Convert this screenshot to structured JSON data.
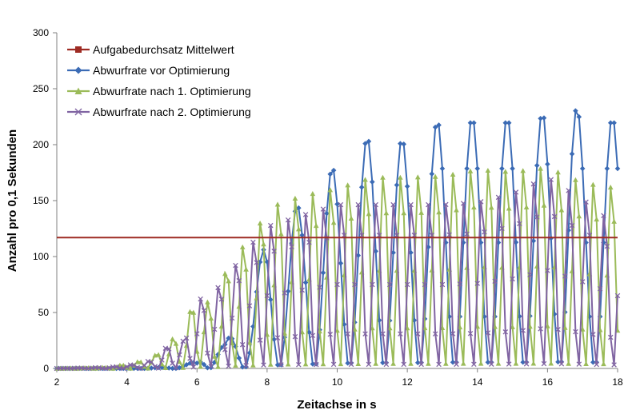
{
  "chart_data": {
    "type": "line",
    "xlabel": "Zeitachse in s",
    "ylabel": "Anzahl pro 0,1 Sekunden",
    "xlim": [
      2,
      18
    ],
    "ylim": [
      0,
      300
    ],
    "xticks": [
      2,
      4,
      6,
      8,
      10,
      12,
      14,
      16,
      18
    ],
    "yticks": [
      0,
      50,
      100,
      150,
      200,
      250,
      300
    ],
    "grid": false,
    "legend_position": "top-left",
    "series": [
      {
        "name": "Aufgabedurchsatz Mittelwert",
        "color": "#9e2b23",
        "marker": "square",
        "kind": "constant",
        "value": 117
      },
      {
        "name": "Abwurfrate vor Optimierung",
        "color": "#3b6bb5",
        "marker": "diamond",
        "kind": "oscillation",
        "x_start": 2,
        "x_end": 18,
        "step": 0.1,
        "envelope": [
          [
            2,
            0
          ],
          [
            4.5,
            0
          ],
          [
            5,
            1
          ],
          [
            5.5,
            3
          ],
          [
            6,
            6
          ],
          [
            6.4,
            28
          ],
          [
            6.8,
            22
          ],
          [
            7.2,
            45
          ],
          [
            7.6,
            75
          ],
          [
            8,
            120
          ],
          [
            9,
            150
          ],
          [
            10,
            185
          ],
          [
            10.5,
            200
          ],
          [
            11,
            210
          ],
          [
            12,
            205
          ],
          [
            13,
            225
          ],
          [
            14,
            225
          ],
          [
            15,
            225
          ],
          [
            16,
            230
          ],
          [
            16.6,
            247
          ],
          [
            17,
            225
          ],
          [
            18,
            225
          ]
        ],
        "period": 1.0,
        "phase": 0.6
      },
      {
        "name": "Abwurfrate nach 1. Optimierung",
        "color": "#9bbb59",
        "marker": "triangle",
        "kind": "oscillation",
        "x_start": 2,
        "x_end": 18,
        "step": 0.1,
        "envelope": [
          [
            2,
            0
          ],
          [
            3.5,
            1
          ],
          [
            4.3,
            6
          ],
          [
            4.8,
            12
          ],
          [
            5.2,
            26
          ],
          [
            5.6,
            30
          ],
          [
            6,
            74
          ],
          [
            6.5,
            52
          ],
          [
            7,
            110
          ],
          [
            7.5,
            112
          ],
          [
            8,
            147
          ],
          [
            9,
            158
          ],
          [
            10,
            165
          ],
          [
            11,
            175
          ],
          [
            12,
            175
          ],
          [
            13,
            176
          ],
          [
            14,
            182
          ],
          [
            15,
            180
          ],
          [
            16,
            184
          ],
          [
            17,
            170
          ],
          [
            18,
            165
          ]
        ],
        "period": 0.5,
        "phase": 0.2
      },
      {
        "name": "Abwurfrate nach 2. Optimierung",
        "color": "#8064a2",
        "marker": "x",
        "kind": "oscillation",
        "x_start": 2,
        "x_end": 18,
        "step": 0.1,
        "envelope": [
          [
            2,
            0
          ],
          [
            3.5,
            1
          ],
          [
            4.3,
            4
          ],
          [
            4.8,
            8
          ],
          [
            5.2,
            22
          ],
          [
            5.6,
            25
          ],
          [
            6,
            62
          ],
          [
            6.5,
            70
          ],
          [
            7,
            90
          ],
          [
            7.5,
            112
          ],
          [
            8,
            130
          ],
          [
            9,
            140
          ],
          [
            10,
            150
          ],
          [
            11,
            150
          ],
          [
            12,
            150
          ],
          [
            13,
            150
          ],
          [
            14,
            152
          ],
          [
            15,
            160
          ],
          [
            16,
            175
          ],
          [
            17,
            155
          ],
          [
            18,
            130
          ]
        ],
        "period": 0.5,
        "phase": 0.0
      }
    ]
  }
}
